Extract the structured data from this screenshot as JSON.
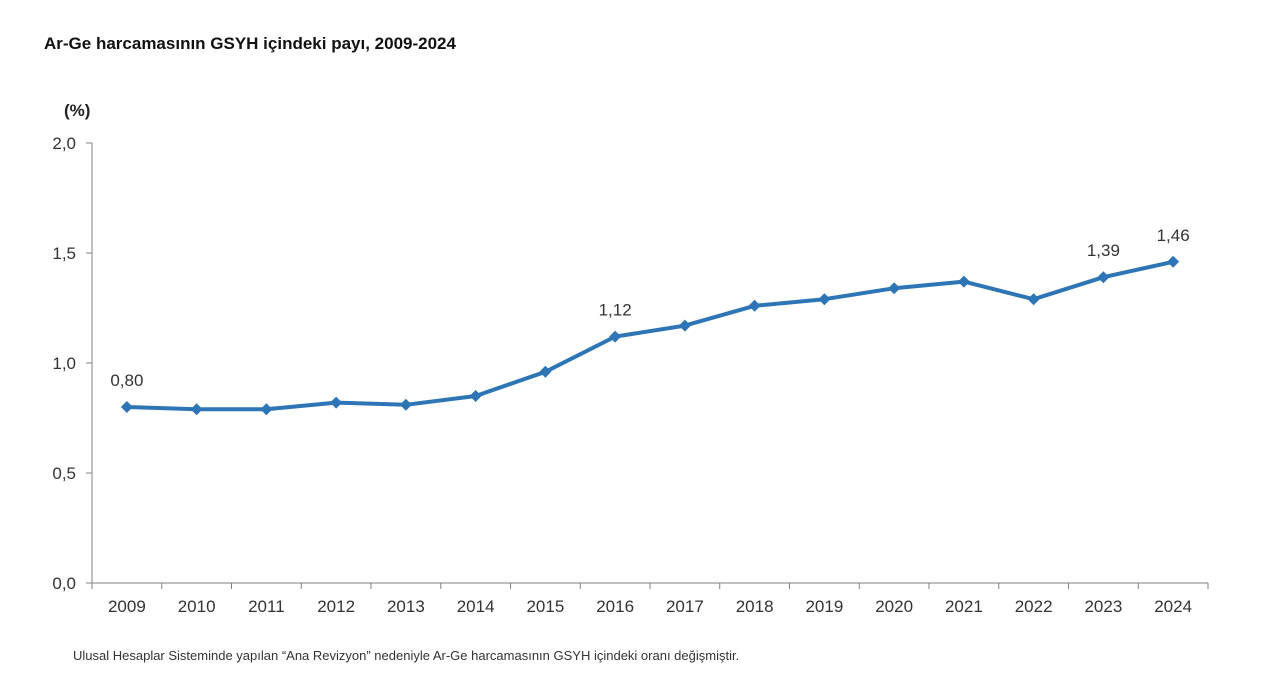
{
  "chart_data": {
    "type": "line",
    "title": "Ar-Ge harcamasının GSYH içindeki payı, 2009-2024",
    "ylabel": "(%)",
    "xlabel": "",
    "ylim": [
      0,
      2.0
    ],
    "yticks": [
      "0,0",
      "0,5",
      "1,0",
      "1,5",
      "2,0"
    ],
    "ytick_values": [
      0,
      0.5,
      1.0,
      1.5,
      2.0
    ],
    "grid": false,
    "categories": [
      "2009",
      "2010",
      "2011",
      "2012",
      "2013",
      "2014",
      "2015",
      "2016",
      "2017",
      "2018",
      "2019",
      "2020",
      "2021",
      "2022",
      "2023",
      "2024"
    ],
    "series": [
      {
        "name": "Ar-Ge harcamasının GSYH içindeki payı",
        "color": "#2E75B6",
        "values": [
          0.8,
          0.79,
          0.79,
          0.82,
          0.81,
          0.85,
          0.96,
          1.12,
          1.17,
          1.26,
          1.29,
          1.34,
          1.37,
          1.29,
          1.39,
          1.46
        ]
      }
    ],
    "data_labels": [
      {
        "category": "2009",
        "text": "0,80"
      },
      {
        "category": "2016",
        "text": "1,12"
      },
      {
        "category": "2023",
        "text": "1,39"
      },
      {
        "category": "2024",
        "text": "1,46"
      }
    ],
    "footnote": "Ulusal Hesaplar Sisteminde yapılan “Ana Revizyon” nedeniyle Ar-Ge harcamasının GSYH içindeki oranı değişmiştir."
  }
}
